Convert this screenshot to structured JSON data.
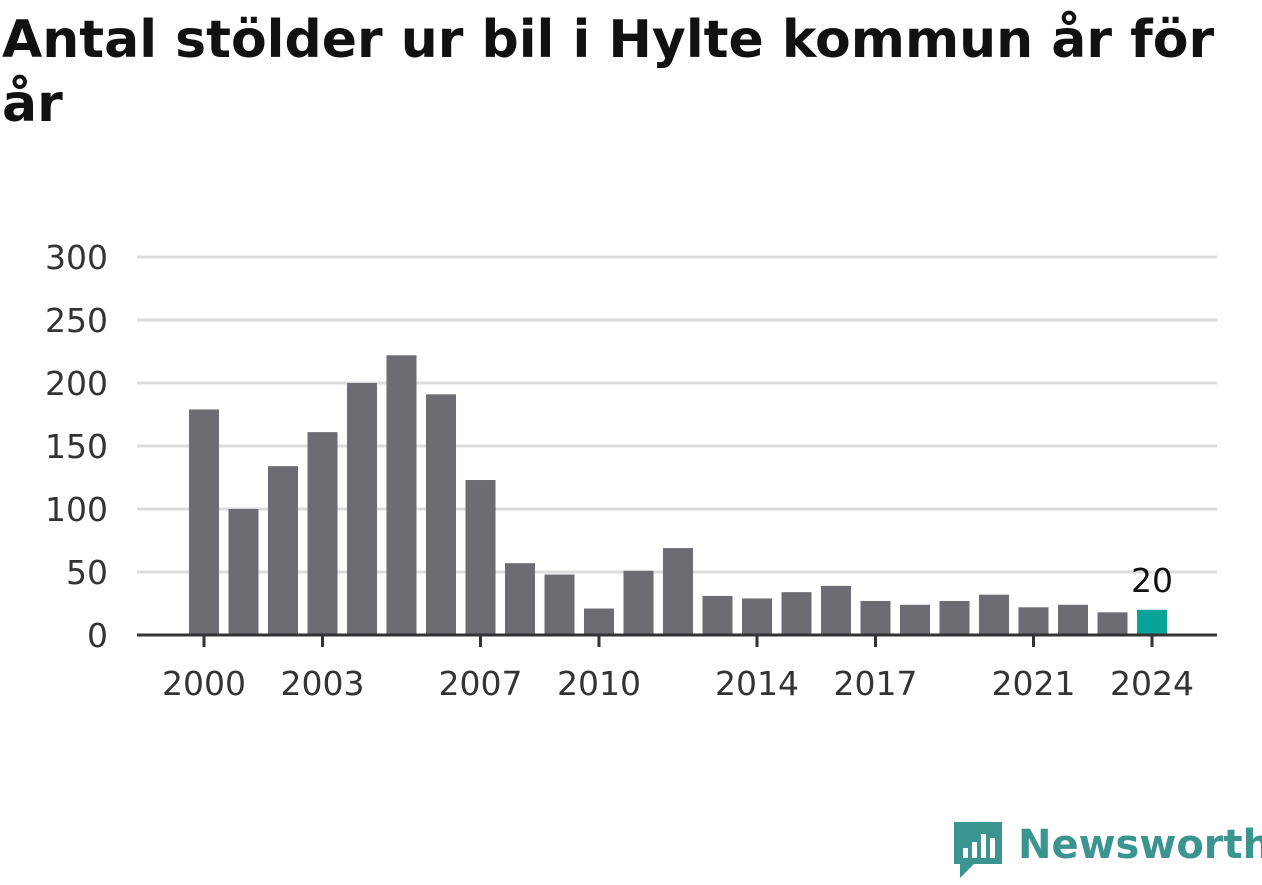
{
  "title": "Antal stölder ur bil i Hylte kommun år för år",
  "colors": {
    "bar": "#6d6c72",
    "highlight": "#0aa39a",
    "grid": "#dcdcdc",
    "axis": "#333333",
    "brand": "#3a9591"
  },
  "brand": {
    "name": "Newsworthy",
    "icon": "chat-bar-chart-icon"
  },
  "chart_data": {
    "type": "bar",
    "title": "Antal stölder ur bil i Hylte kommun år för år",
    "xlabel": "",
    "ylabel": "",
    "ylim": [
      0,
      300
    ],
    "yticks": [
      0,
      50,
      100,
      150,
      200,
      250,
      300
    ],
    "grid": true,
    "categories": [
      "2000",
      "2001",
      "2002",
      "2003",
      "2004",
      "2005",
      "2006",
      "2007",
      "2008",
      "2009",
      "2010",
      "2011",
      "2012",
      "2013",
      "2014",
      "2015",
      "2016",
      "2017",
      "2018",
      "2019",
      "2020",
      "2021",
      "2022",
      "2023",
      "2024"
    ],
    "xtick_labels": [
      "2000",
      "2003",
      "2007",
      "2010",
      "2014",
      "2017",
      "2021",
      "2024"
    ],
    "values": [
      179,
      100,
      134,
      161,
      200,
      222,
      191,
      123,
      57,
      48,
      21,
      51,
      69,
      31,
      29,
      34,
      39,
      27,
      24,
      27,
      32,
      22,
      24,
      18,
      20
    ],
    "highlight": {
      "category": "2024",
      "label": "20"
    }
  }
}
